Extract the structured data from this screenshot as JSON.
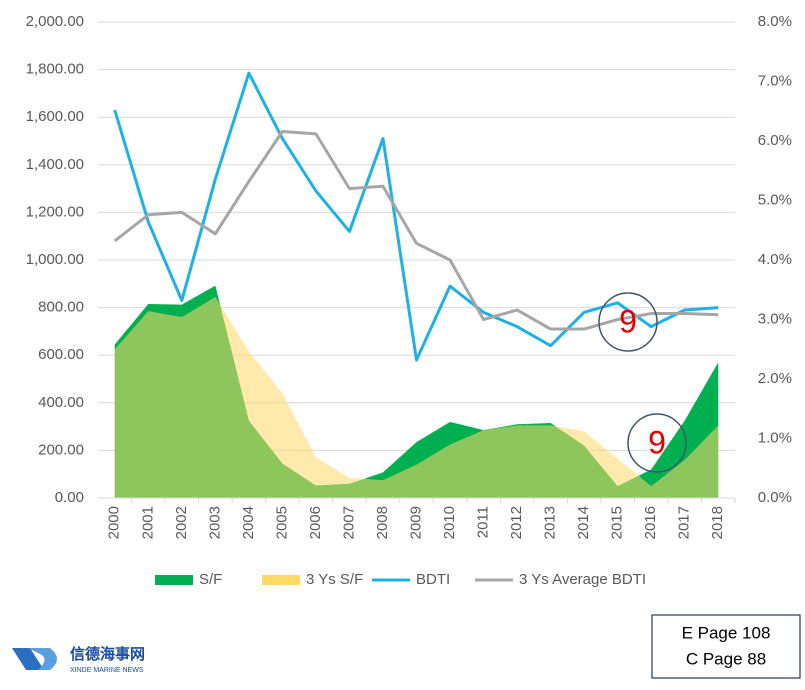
{
  "chart_data": {
    "type": "area_line",
    "categories": [
      "2000",
      "2001",
      "2002",
      "2003",
      "2004",
      "2005",
      "2006",
      "2007",
      "2008",
      "2009",
      "2010",
      "2011",
      "2012",
      "2013",
      "2014",
      "2015",
      "2016",
      "2017",
      "2018"
    ],
    "series": [
      {
        "name": "S/F",
        "kind": "area",
        "axis": "y2",
        "color": "#00b050",
        "values": [
          2.58,
          3.26,
          3.25,
          3.57,
          1.3,
          0.58,
          0.21,
          0.24,
          0.43,
          0.94,
          1.28,
          1.14,
          1.24,
          1.26,
          0.88,
          0.2,
          0.48,
          1.3,
          2.28
        ]
      },
      {
        "name": "3 Ys S/F",
        "kind": "area",
        "axis": "y2",
        "color": "#ffd966",
        "values": [
          2.5,
          3.14,
          3.04,
          3.38,
          2.46,
          1.76,
          0.68,
          0.34,
          0.3,
          0.56,
          0.9,
          1.14,
          1.22,
          1.22,
          1.12,
          0.66,
          0.2,
          0.64,
          1.22
        ]
      },
      {
        "name": "BDTI",
        "kind": "line",
        "color": "#1fb0e6",
        "values": [
          1630,
          1160,
          830,
          1340,
          1785,
          1510,
          1290,
          1120,
          1510,
          580,
          890,
          780,
          720,
          640,
          780,
          820,
          720,
          790,
          800
        ]
      },
      {
        "name": "3 Ys Average BDTI",
        "kind": "line",
        "color": "#a6a6a6",
        "values": [
          1080,
          1190,
          1200,
          1110,
          1330,
          1540,
          1530,
          1300,
          1310,
          1070,
          1000,
          750,
          790,
          710,
          710,
          750,
          775,
          775,
          770
        ]
      }
    ],
    "ylim": [
      0,
      2000
    ],
    "yticks": [
      {
        "value": 0,
        "label": "0.00"
      },
      {
        "value": 200,
        "label": "200.00"
      },
      {
        "value": 400,
        "label": "400.00"
      },
      {
        "value": 600,
        "label": "600.00"
      },
      {
        "value": 800,
        "label": "800.00"
      },
      {
        "value": 1000,
        "label": "1,000.00"
      },
      {
        "value": 1200,
        "label": "1,200.00"
      },
      {
        "value": 1400,
        "label": "1,400.00"
      },
      {
        "value": 1600,
        "label": "1,600.00"
      },
      {
        "value": 1800,
        "label": "1,800.00"
      },
      {
        "value": 2000,
        "label": "2,000.00"
      }
    ],
    "y2lim": [
      0,
      8
    ],
    "y2ticks": [
      {
        "value": 0,
        "label": "0.0%"
      },
      {
        "value": 1,
        "label": "1.0%"
      },
      {
        "value": 2,
        "label": "2.0%"
      },
      {
        "value": 3,
        "label": "3.0%"
      },
      {
        "value": 4,
        "label": "4.0%"
      },
      {
        "value": 5,
        "label": "5.0%"
      },
      {
        "value": 6,
        "label": "6.0%"
      },
      {
        "value": 7,
        "label": "7.0%"
      },
      {
        "value": 8,
        "label": "8.0%"
      }
    ],
    "grid": true,
    "legend": "bottom",
    "annotations": [
      "9",
      "9"
    ]
  },
  "logo": {
    "name": "信德海事网",
    "subtitle": "XINDE MARINE NEWS"
  },
  "page_box": [
    "E Page 108",
    "C Page 88"
  ]
}
